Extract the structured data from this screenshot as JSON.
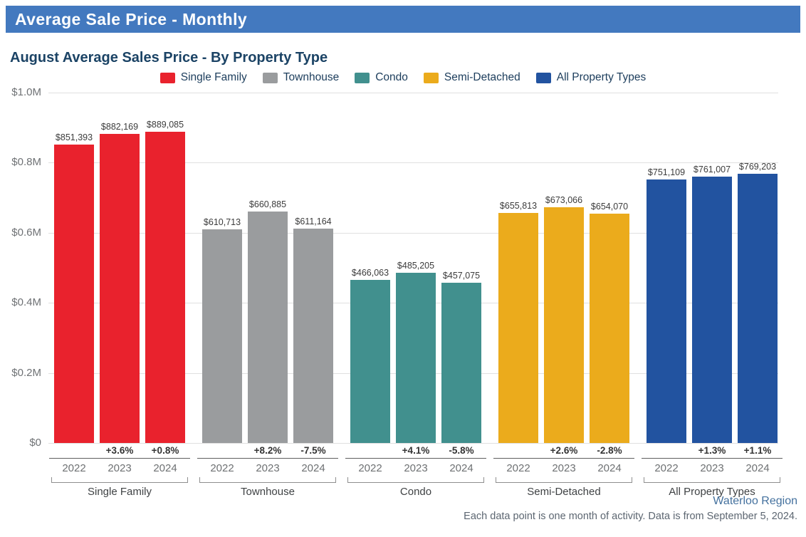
{
  "window_title": "Average Sale Price - Monthly",
  "page_title": "August Average Sales Price - By Property Type",
  "footer": {
    "region_link": "Waterloo Region",
    "caption": "Each data point is one month of activity. Data is from September 5, 2024."
  },
  "colors": {
    "header_bg": "#4379BF",
    "title_text": "#1B4365",
    "legend_text": "#1C3D5C",
    "axis_text": "#6F7275",
    "grid_line": "#E0E0E0",
    "region_link": "#44719E"
  },
  "chart_data": {
    "type": "bar",
    "title": "August Average Sales Price - By Property Type",
    "categories": [
      "2022",
      "2023",
      "2024"
    ],
    "ylim": [
      0,
      1000000
    ],
    "grid": true,
    "legend_position": "top",
    "yticks": [
      {
        "value": 0,
        "label": "$0"
      },
      {
        "value": 200000,
        "label": "$0.2M"
      },
      {
        "value": 400000,
        "label": "$0.4M"
      },
      {
        "value": 600000,
        "label": "$0.6M"
      },
      {
        "value": 800000,
        "label": "$0.8M"
      },
      {
        "value": 1000000,
        "label": "$1.0M"
      }
    ],
    "series": [
      {
        "name": "Single Family",
        "color": "#E9222D",
        "values": [
          851393,
          882169,
          889085
        ],
        "value_labels": [
          "$851,393",
          "$882,169",
          "$889,085"
        ],
        "pct_change": [
          "",
          "+3.6%",
          "+0.8%"
        ]
      },
      {
        "name": "Townhouse",
        "color": "#9A9C9E",
        "values": [
          610713,
          660885,
          611164
        ],
        "value_labels": [
          "$610,713",
          "$660,885",
          "$611,164"
        ],
        "pct_change": [
          "",
          "+8.2%",
          "-7.5%"
        ]
      },
      {
        "name": "Condo",
        "color": "#41908E",
        "values": [
          466063,
          485205,
          457075
        ],
        "value_labels": [
          "$466,063",
          "$485,205",
          "$457,075"
        ],
        "pct_change": [
          "",
          "+4.1%",
          "-5.8%"
        ]
      },
      {
        "name": "Semi-Detached",
        "color": "#EBAB1C",
        "values": [
          655813,
          673066,
          654070
        ],
        "value_labels": [
          "$655,813",
          "$673,066",
          "$654,070"
        ],
        "pct_change": [
          "",
          "+2.6%",
          "-2.8%"
        ]
      },
      {
        "name": "All Property Types",
        "color": "#2253A0",
        "values": [
          751109,
          761007,
          769203
        ],
        "value_labels": [
          "$751,109",
          "$761,007",
          "$769,203"
        ],
        "pct_change": [
          "",
          "+1.3%",
          "+1.1%"
        ]
      }
    ]
  }
}
